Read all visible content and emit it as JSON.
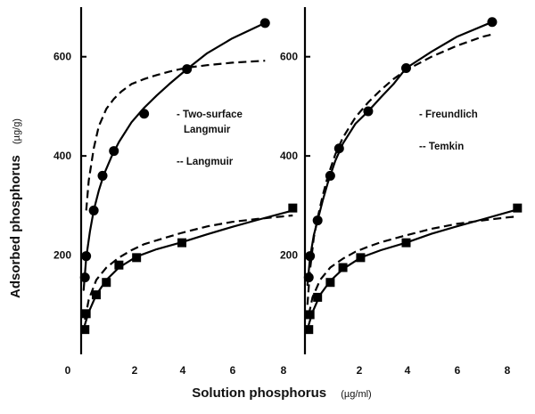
{
  "chart_data": {
    "type": "scatter",
    "ylabel": "Adsorbed phosphorus",
    "ylabel_unit": "(µg/g)",
    "xlabel": "Solution phosphorus",
    "xlabel_unit": "(µg/ml)",
    "y_ticks": [
      "200",
      "400",
      "600"
    ],
    "x_ticks": [
      "0",
      "2",
      "4",
      "6",
      "8"
    ],
    "xlim": [
      0,
      8.6
    ],
    "ylim": [
      0,
      700
    ],
    "panels": [
      {
        "legend": [
          {
            "mark": "-",
            "label_lines": [
              "Two-surface",
              "Langmuir"
            ],
            "style": "solid"
          },
          {
            "mark": "--",
            "label_lines": [
              "Langmuir"
            ],
            "style": "dashed"
          }
        ],
        "series": [
          {
            "marker": "circle",
            "x": [
              0.15,
              0.2,
              0.5,
              0.85,
              1.3,
              2.5,
              4.2,
              7.3
            ],
            "y": [
              155,
              198,
              290,
              360,
              410,
              485,
              575,
              668
            ],
            "fit_solid": {
              "x": [
                0.1,
                0.2,
                0.35,
                0.5,
                0.7,
                0.9,
                1.2,
                1.5,
                2.0,
                2.5,
                3.0,
                3.5,
                4.2,
                5.0,
                6.0,
                7.3
              ],
              "y": [
                130,
                195,
                248,
                290,
                330,
                362,
                398,
                428,
                468,
                497,
                522,
                545,
                575,
                607,
                637,
                668
              ]
            },
            "fit_dashed": {
              "x": [
                0.2,
                0.3,
                0.5,
                0.7,
                1.0,
                1.3,
                1.6,
                2.0,
                2.5,
                3.0,
                3.5,
                4.2,
                5.0,
                6.0,
                7.0,
                7.3
              ],
              "y": [
                290,
                350,
                415,
                460,
                495,
                515,
                530,
                545,
                555,
                563,
                570,
                578,
                583,
                588,
                591,
                592
              ]
            }
          },
          {
            "marker": "square",
            "x": [
              0.15,
              0.2,
              0.6,
              1.0,
              1.5,
              2.2,
              4.0,
              8.4
            ],
            "y": [
              50,
              82,
              120,
              145,
              180,
              195,
              225,
              295
            ],
            "fit_solid": {
              "x": [
                0.15,
                0.3,
                0.6,
                1.0,
                1.5,
                2.2,
                3.0,
                4.0,
                5.0,
                6.0,
                7.0,
                8.4
              ],
              "y": [
                60,
                85,
                120,
                150,
                175,
                197,
                212,
                226,
                242,
                257,
                271,
                290
              ]
            },
            "fit_dashed": {
              "x": [
                0.15,
                0.3,
                0.6,
                1.0,
                1.5,
                2.0,
                2.5,
                3.0,
                4.0,
                5.0,
                6.0,
                7.0,
                8.0,
                8.4
              ],
              "y": [
                70,
                110,
                150,
                175,
                195,
                210,
                222,
                230,
                245,
                258,
                267,
                273,
                278,
                280
              ]
            }
          }
        ]
      },
      {
        "legend": [
          {
            "mark": "-",
            "label_lines": [
              "Freundlich"
            ],
            "style": "solid"
          },
          {
            "mark": "--",
            "label_lines": [
              "Temkin"
            ],
            "style": "dashed"
          }
        ],
        "series": [
          {
            "marker": "circle",
            "x": [
              0.15,
              0.2,
              0.5,
              1.0,
              1.35,
              2.5,
              4.0,
              7.4
            ],
            "y": [
              155,
              198,
              270,
              360,
              415,
              490,
              577,
              670
            ],
            "fit_solid": {
              "x": [
                0.1,
                0.2,
                0.35,
                0.5,
                0.7,
                0.9,
                1.2,
                1.5,
                2.0,
                2.5,
                3.0,
                3.5,
                4.0,
                5.0,
                6.0,
                7.4
              ],
              "y": [
                140,
                195,
                240,
                270,
                310,
                345,
                390,
                425,
                465,
                490,
                518,
                545,
                577,
                610,
                640,
                670
              ]
            },
            "fit_dashed": {
              "x": [
                0.1,
                0.2,
                0.35,
                0.5,
                0.7,
                0.9,
                1.2,
                1.5,
                2.0,
                2.5,
                3.0,
                3.5,
                4.0,
                5.0,
                6.0,
                7.0,
                7.4
              ],
              "y": [
                100,
                170,
                235,
                275,
                320,
                358,
                403,
                437,
                478,
                508,
                533,
                555,
                573,
                600,
                622,
                640,
                645
              ]
            }
          },
          {
            "marker": "square",
            "x": [
              0.15,
              0.2,
              0.5,
              1.0,
              1.5,
              2.2,
              4.0,
              8.4
            ],
            "y": [
              50,
              80,
              115,
              145,
              175,
              195,
              225,
              295
            ],
            "fit_solid": {
              "x": [
                0.15,
                0.3,
                0.6,
                1.0,
                1.5,
                2.2,
                3.0,
                4.0,
                5.0,
                6.0,
                7.0,
                8.4
              ],
              "y": [
                60,
                85,
                120,
                148,
                172,
                195,
                210,
                225,
                243,
                258,
                272,
                292
              ]
            },
            "fit_dashed": {
              "x": [
                0.15,
                0.3,
                0.6,
                1.0,
                1.5,
                2.0,
                2.5,
                3.0,
                4.0,
                5.0,
                6.0,
                7.0,
                8.0,
                8.4
              ],
              "y": [
                80,
                115,
                150,
                175,
                193,
                207,
                217,
                226,
                240,
                253,
                263,
                270,
                276,
                278
              ]
            }
          }
        ]
      }
    ]
  }
}
